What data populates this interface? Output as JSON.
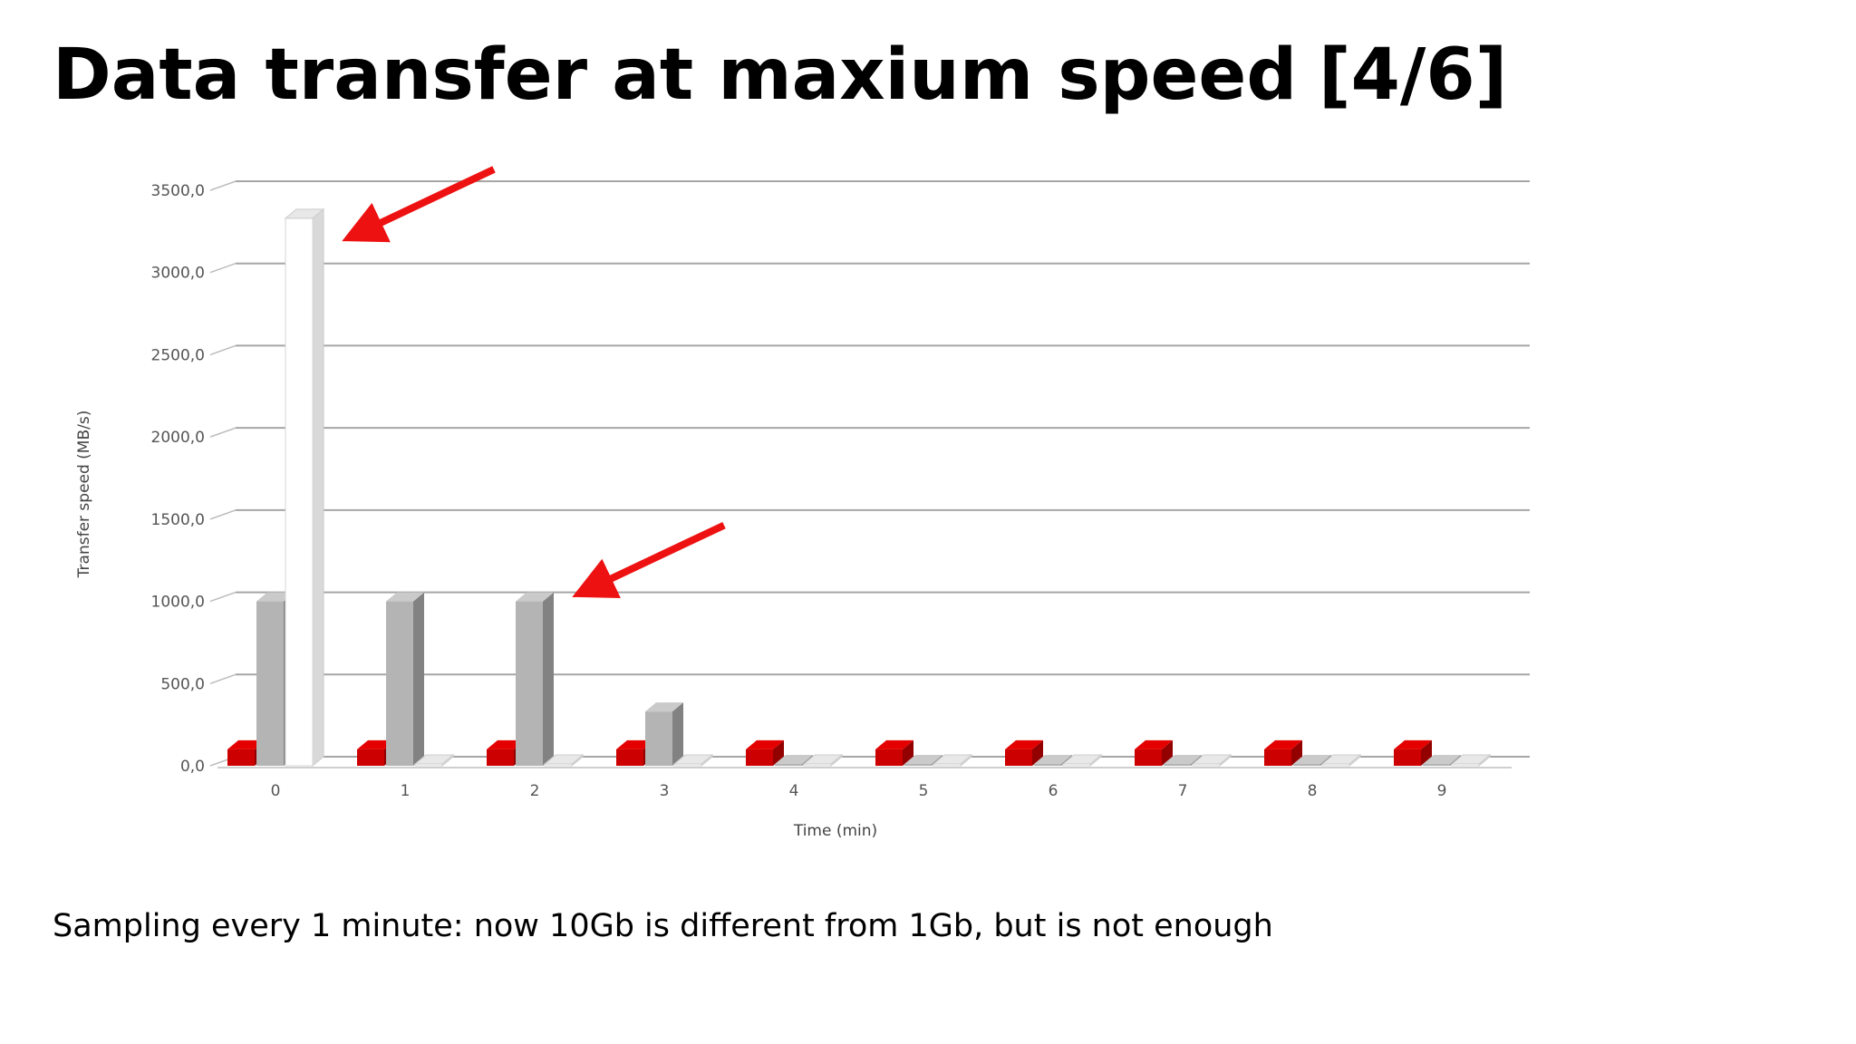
{
  "slide": {
    "title": "Data transfer at maxium speed",
    "counter": "[4/6]",
    "caption": "Sampling every 1 minute: now 10Gb is different from 1Gb, but is not enough"
  },
  "colors": {
    "series_red": "#cc0000",
    "series_gray": "#b4b4b4",
    "series_white": "#ffffff",
    "arrow": "#ee1111",
    "grid": "#a6a6a6"
  },
  "chart_data": {
    "type": "bar",
    "xlabel": "Time (min)",
    "ylabel": "Transfer speed (MB/s)",
    "categories": [
      "0",
      "1",
      "2",
      "3",
      "4",
      "5",
      "6",
      "7",
      "8",
      "9"
    ],
    "yticks": [
      "0,0",
      "500,0",
      "1000,0",
      "1500,0",
      "2000,0",
      "2500,0",
      "3000,0",
      "3500,0"
    ],
    "ylim": [
      0,
      3500
    ],
    "grid": true,
    "series": [
      {
        "values": [
          100,
          100,
          100,
          100,
          100,
          100,
          100,
          100,
          100,
          100
        ]
      },
      {
        "values": [
          1000,
          1000,
          1000,
          330,
          0,
          0,
          0,
          0,
          0,
          0
        ]
      },
      {
        "values": [
          3330,
          0,
          0,
          0,
          0,
          0,
          0,
          0,
          0,
          0
        ]
      }
    ],
    "annotations": [
      {
        "type": "arrow",
        "points_to_category": "0",
        "points_to_value": 3330
      },
      {
        "type": "arrow",
        "points_to_category": "2",
        "points_to_value": 1000
      }
    ]
  }
}
